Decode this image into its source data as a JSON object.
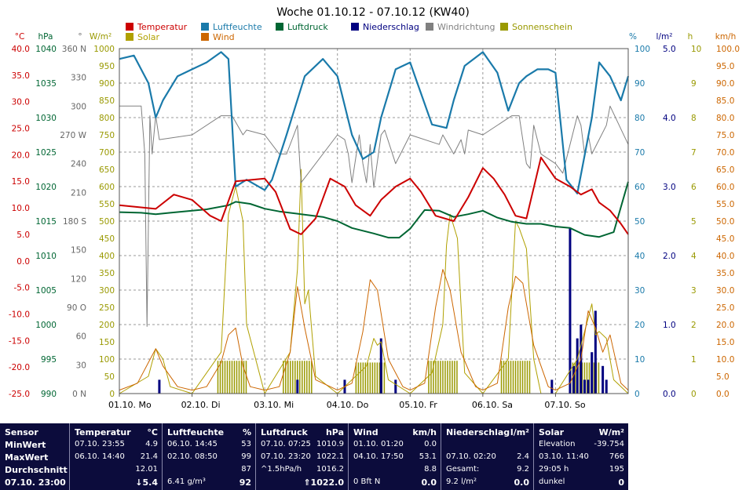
{
  "chart_data": {
    "type": "line",
    "title": "Woche 01.10.12 - 07.10.12 (KW40)",
    "x_start": "2012-10-01 00:00",
    "x_end": "2012-10-08 00:00",
    "days": [
      {
        "date": "01.10.",
        "weekday": "Mo"
      },
      {
        "date": "02.10.",
        "weekday": "Di"
      },
      {
        "date": "03.10.",
        "weekday": "Mi"
      },
      {
        "date": "04.10.",
        "weekday": "Do"
      },
      {
        "date": "05.10.",
        "weekday": "Fr"
      },
      {
        "date": "06.10.",
        "weekday": "Sa"
      },
      {
        "date": "07.10.",
        "weekday": "So"
      }
    ],
    "grid": true,
    "legend_position": "top",
    "axes": {
      "temperature": {
        "unit": "°C",
        "range": [
          -25,
          40
        ],
        "ticks": [
          "40.0",
          "35.0",
          "30.0",
          "25.0",
          "20.0",
          "15.0",
          "10.0",
          "5.0",
          "0.0",
          "-5.0",
          "-10.0",
          "-15.0",
          "-20.0",
          "-25.0"
        ],
        "color": "#cc0000"
      },
      "pressure": {
        "unit": "hPa",
        "range": [
          990,
          1040
        ],
        "ticks": [
          "1040",
          "1035",
          "1030",
          "1025",
          "1020",
          "1015",
          "1010",
          "1005",
          "1000",
          "995",
          "990"
        ],
        "color": "#006633"
      },
      "wind_direction": {
        "unit": "°",
        "range": [
          0,
          360
        ],
        "ticks": [
          "360 N",
          "330",
          "300",
          "270 W",
          "240",
          "210",
          "180 S",
          "150",
          "120",
          "90 O",
          "60",
          "30",
          "0 N"
        ],
        "color": "#666666"
      },
      "solar": {
        "unit": "W/m²",
        "range": [
          0,
          1000
        ],
        "ticks": [
          "1000",
          "950",
          "900",
          "850",
          "800",
          "750",
          "700",
          "650",
          "600",
          "550",
          "500",
          "450",
          "400",
          "350",
          "300",
          "250",
          "200",
          "150",
          "100",
          "50",
          "0"
        ],
        "color": "#999900"
      },
      "humidity": {
        "unit": "%",
        "range": [
          0,
          100
        ],
        "ticks": [
          "100",
          "90",
          "80",
          "70",
          "60",
          "50",
          "40",
          "30",
          "20",
          "10",
          "0"
        ],
        "color": "#1a7aaa"
      },
      "precipitation": {
        "unit": "l/m²",
        "range": [
          0,
          5
        ],
        "ticks": [
          "5.0",
          "4.0",
          "3.0",
          "2.0",
          "1.0",
          "0.0"
        ],
        "color": "#000080"
      },
      "sunshine": {
        "unit": "h",
        "range": [
          0,
          10
        ],
        "ticks": [
          "10",
          "9",
          "8",
          "7",
          "6",
          "5",
          "4",
          "3",
          "2",
          "1",
          "0"
        ],
        "color": "#999900"
      },
      "wind_speed": {
        "unit": "km/h",
        "range": [
          0,
          100
        ],
        "ticks": [
          "100.0",
          "95.0",
          "90.0",
          "85.0",
          "80.0",
          "75.0",
          "70.0",
          "65.0",
          "60.0",
          "55.0",
          "50.0",
          "45.0",
          "40.0",
          "35.0",
          "30.0",
          "25.0",
          "20.0",
          "15.0",
          "10.0",
          "5.0",
          "0.0"
        ],
        "color": "#cc6600"
      }
    },
    "series": [
      {
        "name": "Temperatur",
        "axis": "temperature",
        "color": "#cc0000",
        "x_days": [
          0,
          0.5,
          0.75,
          1,
          1.25,
          1.4,
          1.6,
          2,
          2.15,
          2.35,
          2.5,
          2.7,
          2.9,
          3.1,
          3.25,
          3.45,
          3.6,
          3.8,
          4,
          4.15,
          4.35,
          4.6,
          4.8,
          5,
          5.15,
          5.3,
          5.45,
          5.6,
          5.8,
          6,
          6.2,
          6.35,
          6.5,
          6.6,
          6.75,
          6.9,
          7
        ],
        "values": [
          10.5,
          9.8,
          12.5,
          11.5,
          8.5,
          7.5,
          15,
          15.5,
          13,
          6,
          5,
          8,
          15.5,
          14,
          10.5,
          8.5,
          11.5,
          14,
          15.5,
          13,
          8.5,
          7.5,
          12,
          17.5,
          15.5,
          12.5,
          8.5,
          8,
          19.5,
          15.5,
          14,
          12.5,
          13.5,
          11,
          9.5,
          7,
          5
        ]
      },
      {
        "name": "Luftfeuchte",
        "axis": "humidity",
        "color": "#1a7aaa",
        "x_days": [
          0,
          0.2,
          0.4,
          0.5,
          0.6,
          0.8,
          1,
          1.2,
          1.4,
          1.5,
          1.6,
          1.75,
          2,
          2.1,
          2.3,
          2.55,
          2.8,
          3,
          3.2,
          3.35,
          3.5,
          3.6,
          3.8,
          4,
          4.1,
          4.3,
          4.5,
          4.6,
          4.75,
          5,
          5.2,
          5.35,
          5.5,
          5.6,
          5.75,
          5.9,
          6,
          6.15,
          6.3,
          6.5,
          6.6,
          6.75,
          6.9,
          7
        ],
        "values": [
          97,
          98,
          90,
          80,
          85,
          92,
          94,
          96,
          99,
          97,
          60,
          62,
          59,
          62,
          75,
          92,
          97,
          92,
          75,
          68,
          70,
          80,
          94,
          96,
          90,
          78,
          77,
          85,
          95,
          99,
          93,
          82,
          90,
          92,
          94,
          94,
          93,
          62,
          58,
          80,
          96,
          92,
          85,
          92
        ]
      },
      {
        "name": "Luftdruck",
        "axis": "pressure",
        "color": "#006633",
        "x_days": [
          0,
          0.3,
          0.5,
          0.7,
          1,
          1.2,
          1.5,
          1.6,
          1.8,
          2,
          2.2,
          2.5,
          2.8,
          3,
          3.2,
          3.5,
          3.7,
          3.85,
          4,
          4.2,
          4.4,
          4.6,
          4.8,
          5,
          5.2,
          5.4,
          5.6,
          5.8,
          6,
          6.2,
          6.4,
          6.6,
          6.8,
          7
        ],
        "values": [
          1016.3,
          1016.2,
          1016,
          1016.2,
          1016.5,
          1016.7,
          1017.3,
          1017.8,
          1017.5,
          1016.8,
          1016.4,
          1016,
          1015.6,
          1015,
          1014,
          1013.2,
          1012.6,
          1012.6,
          1013.9,
          1016.6,
          1016.5,
          1015.6,
          1016,
          1016.5,
          1015.5,
          1014.9,
          1014.6,
          1014.6,
          1014.2,
          1014,
          1013,
          1012.7,
          1013.4,
          1020.7
        ]
      },
      {
        "name": "Wind",
        "axis": "wind_speed",
        "color": "#cc6600",
        "x_days": [
          0,
          0.25,
          0.4,
          0.5,
          0.6,
          0.8,
          1,
          1.2,
          1.4,
          1.5,
          1.6,
          1.7,
          1.8,
          2,
          2.2,
          2.35,
          2.45,
          2.55,
          2.7,
          2.9,
          3,
          3.2,
          3.35,
          3.45,
          3.55,
          3.7,
          3.9,
          4,
          4.2,
          4.35,
          4.45,
          4.55,
          4.7,
          4.9,
          5,
          5.2,
          5.35,
          5.45,
          5.55,
          5.7,
          5.9,
          6,
          6.2,
          6.35,
          6.45,
          6.55,
          6.65,
          6.75,
          6.9,
          7
        ],
        "values": [
          1,
          3,
          9,
          13,
          8,
          2,
          1,
          2,
          9,
          17,
          19,
          8,
          2,
          1,
          2,
          12,
          31,
          19,
          4,
          2,
          1,
          3,
          18,
          33,
          30,
          10,
          2,
          1,
          3,
          25,
          36,
          30,
          12,
          2,
          1,
          3,
          25,
          34,
          32,
          14,
          2,
          1,
          3,
          10,
          24,
          19,
          12,
          17,
          3,
          1
        ]
      },
      {
        "name": "Windrichtung",
        "axis": "wind_direction",
        "color": "#808080",
        "x_days": [
          0,
          0.3,
          0.35,
          0.38,
          0.42,
          0.45,
          0.5,
          0.55,
          1,
          1.4,
          1.45,
          1.55,
          1.7,
          1.75,
          2,
          2.2,
          2.3,
          2.4,
          2.45,
          2.5,
          3,
          3.1,
          3.15,
          3.2,
          3.3,
          3.35,
          3.4,
          3.45,
          3.5,
          3.6,
          3.65,
          3.8,
          4,
          4.4,
          4.45,
          4.6,
          4.7,
          4.75,
          4.8,
          5,
          5.4,
          5.5,
          5.6,
          5.65,
          5.7,
          5.8,
          6,
          6.1,
          6.3,
          6.35,
          6.4,
          6.45,
          6.5,
          6.7,
          6.75,
          7
        ],
        "values": [
          300,
          300,
          250,
          70,
          290,
          250,
          290,
          265,
          270,
          290,
          290,
          290,
          270,
          275,
          270,
          250,
          250,
          270,
          280,
          220,
          270,
          265,
          250,
          220,
          270,
          240,
          220,
          260,
          215,
          270,
          275,
          240,
          270,
          260,
          270,
          250,
          265,
          250,
          275,
          270,
          290,
          290,
          240,
          235,
          280,
          250,
          240,
          230,
          290,
          280,
          250,
          270,
          250,
          280,
          300,
          260
        ]
      },
      {
        "name": "Solar",
        "axis": "solar",
        "color": "#b0a000",
        "x_days": [
          0,
          0.4,
          0.5,
          0.6,
          0.7,
          1,
          1.4,
          1.5,
          1.6,
          1.7,
          1.75,
          2,
          2.35,
          2.45,
          2.5,
          2.55,
          2.6,
          2.7,
          3,
          3.4,
          3.5,
          3.55,
          3.6,
          3.7,
          4,
          4.3,
          4.45,
          4.5,
          4.55,
          4.65,
          4.75,
          5,
          5.35,
          5.45,
          5.5,
          5.6,
          5.7,
          5.8,
          6,
          6.3,
          6.4,
          6.5,
          6.55,
          6.6,
          6.7,
          6.8,
          7
        ],
        "values": [
          0,
          50,
          130,
          100,
          20,
          0,
          120,
          520,
          600,
          500,
          200,
          0,
          120,
          360,
          650,
          260,
          300,
          50,
          0,
          80,
          160,
          140,
          150,
          40,
          0,
          60,
          200,
          430,
          520,
          450,
          60,
          0,
          100,
          500,
          480,
          420,
          100,
          0,
          0,
          100,
          180,
          260,
          170,
          180,
          160,
          40,
          0
        ]
      },
      {
        "name": "Sonnenschein",
        "axis": "sunshine",
        "color": "#999900",
        "x_days": [
          0,
          1,
          1.55,
          2,
          2.45,
          3,
          3.45,
          4,
          4.45,
          5,
          5.45,
          6,
          6.4,
          7
        ],
        "values": [
          0,
          0,
          0.95,
          0,
          0.95,
          0,
          0.9,
          0,
          0.95,
          0,
          0.95,
          0,
          0.9,
          0
        ]
      },
      {
        "name": "Niederschlag",
        "axis": "precipitation",
        "type": "bar",
        "color": "#000080",
        "x_days": [
          0.55,
          2.45,
          3.1,
          3.6,
          3.8,
          5.95,
          6.2,
          6.25,
          6.3,
          6.35,
          6.4,
          6.45,
          6.5,
          6.55,
          6.65,
          6.7
        ],
        "values": [
          0.2,
          0.2,
          0.2,
          0.8,
          0.2,
          0.2,
          2.4,
          0.4,
          0.8,
          1.0,
          0.2,
          0.2,
          0.6,
          1.2,
          0.4,
          0.2
        ]
      }
    ]
  },
  "table": {
    "row_labels": [
      "Sensor",
      "MinWert",
      "MaxWert",
      "Durchschnitt",
      "07.10. 23:00"
    ],
    "columns": [
      {
        "name": "Temperatur",
        "unit": "°C",
        "rows": [
          [
            "07.10.  23:55",
            "4.9"
          ],
          [
            "06.10.  14:40",
            "21.4"
          ],
          [
            "",
            "12.01"
          ],
          [
            "",
            "5.4"
          ]
        ],
        "current_arrow": "↓"
      },
      {
        "name": "Luftfeuchte",
        "unit": "%",
        "rows": [
          [
            "06.10.  14:45",
            "53"
          ],
          [
            "02.10.  08:50",
            "99"
          ],
          [
            "",
            "87"
          ],
          [
            "6.41 g/m³",
            "92"
          ]
        ]
      },
      {
        "name": "Luftdruck",
        "unit": "hPa",
        "rows": [
          [
            "07.10.  07:25",
            "1010.9"
          ],
          [
            "07.10.  23:20",
            "1022.1"
          ],
          [
            "^1.5hPa/h",
            "1016.2"
          ],
          [
            "",
            "1022.0"
          ]
        ],
        "current_arrow": "⇑"
      },
      {
        "name": "Wind",
        "unit": "km/h",
        "rows": [
          [
            "01.10.  01:20",
            "0.0"
          ],
          [
            "04.10.  17:50",
            "53.1"
          ],
          [
            "",
            "8.8"
          ],
          [
            "0 Bft  N",
            "0.0"
          ]
        ]
      },
      {
        "name": "Niederschlag",
        "unit": "l/m²",
        "rows": [
          [
            "",
            ""
          ],
          [
            "07.10.  02:20",
            "2.4"
          ],
          [
            "Gesamt:",
            "9.2"
          ],
          [
            "9.2 l/m²",
            "0.0"
          ]
        ]
      },
      {
        "name": "Solar",
        "unit": "W/m²",
        "rows": [
          [
            "Elevation",
            "-39.754"
          ],
          [
            "03.10.  11:40",
            "766"
          ],
          [
            "29:05 h",
            "195"
          ],
          [
            "dunkel",
            "0"
          ]
        ]
      }
    ]
  }
}
